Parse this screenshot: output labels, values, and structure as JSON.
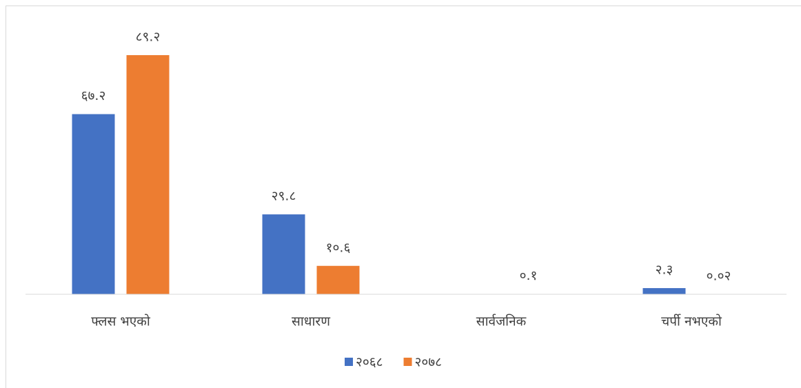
{
  "chart_data": {
    "type": "bar",
    "categories": [
      "फ्लस भएको",
      "साधारण",
      "सार्वजनिक",
      "चर्पी नभएको"
    ],
    "series": [
      {
        "name": "२०६८",
        "color": "#4472c4",
        "values": [
          67.2,
          29.8,
          null,
          2.3
        ],
        "value_labels": [
          "६७.२",
          "२९.८",
          null,
          "२.३"
        ]
      },
      {
        "name": "२०७८",
        "color": "#ed7d31",
        "values": [
          89.2,
          10.6,
          0.1,
          0.02
        ],
        "value_labels": [
          "८९.२",
          "१०.६",
          "०.१",
          "०.०२"
        ]
      }
    ],
    "ylim": [
      0,
      100
    ],
    "legend": "bottom"
  }
}
